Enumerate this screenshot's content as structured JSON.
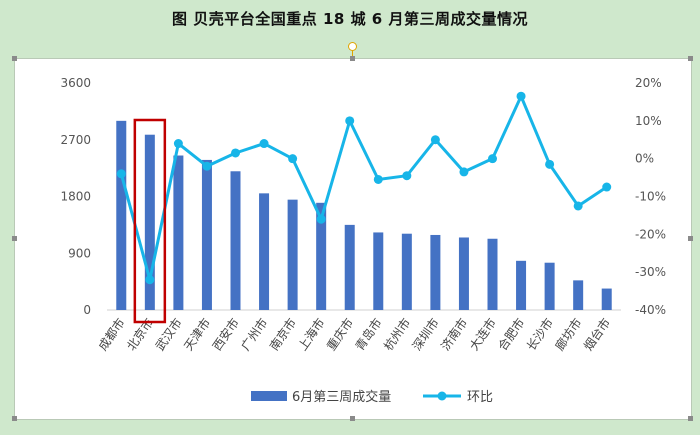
{
  "title": "图  贝壳平台全国重点 18 城 6 月第三周成交量情况",
  "chart_data": {
    "type": "bar",
    "categories": [
      "成都市",
      "北京市",
      "武汉市",
      "天津市",
      "西安市",
      "广州市",
      "南京市",
      "上海市",
      "重庆市",
      "青岛市",
      "杭州市",
      "深圳市",
      "济南市",
      "大连市",
      "合肥市",
      "长沙市",
      "廊坊市",
      "烟台市"
    ],
    "series": [
      {
        "name": "6月第三周成交量",
        "type": "bar",
        "axis": "left",
        "values": [
          3000,
          2780,
          2450,
          2380,
          2200,
          1850,
          1750,
          1700,
          1350,
          1230,
          1210,
          1190,
          1150,
          1130,
          780,
          750,
          470,
          340
        ]
      },
      {
        "name": "环比",
        "type": "line",
        "axis": "right",
        "values": [
          -4,
          -32,
          4,
          -2,
          1.5,
          4,
          0,
          -16,
          10,
          -5.5,
          -4.5,
          5,
          -3.5,
          0,
          16.5,
          -1.5,
          -12.5,
          -7.5
        ]
      }
    ],
    "y_left": {
      "ylim": [
        0,
        3600
      ],
      "ticks": [
        "0",
        "900",
        "1800",
        "2700",
        "3600"
      ]
    },
    "y_right": {
      "ylim": [
        -40,
        20
      ],
      "ticks": [
        "-40%",
        "-30%",
        "-20%",
        "-10%",
        "0%",
        "10%",
        "20%"
      ]
    },
    "legend_position": "bottom",
    "highlight_category": "北京市",
    "colors": {
      "bar": "#4472c4",
      "line": "#17b5e8",
      "highlight": "#c00000"
    }
  }
}
